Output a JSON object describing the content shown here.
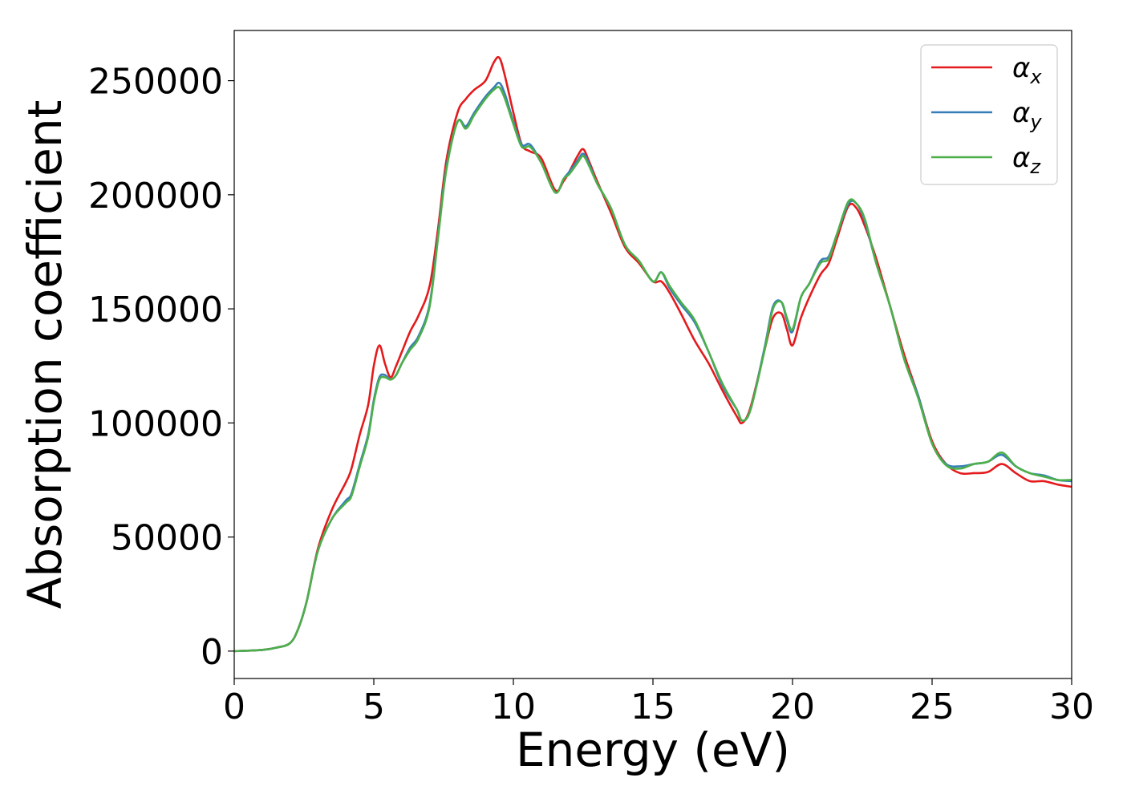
{
  "chart_data": {
    "type": "line",
    "xlabel": "Energy (eV)",
    "ylabel": "Absorption coefficient",
    "xlim": [
      0,
      30
    ],
    "ylim": [
      -12000,
      272000
    ],
    "xticks": [
      0,
      5,
      10,
      15,
      20,
      25,
      30
    ],
    "yticks": [
      0,
      50000,
      100000,
      150000,
      200000,
      250000
    ],
    "grid": false,
    "legend_position": "top-right",
    "series": [
      {
        "name": "α_x",
        "legend_main": "α",
        "legend_sub": "x",
        "color": "#e41a1c",
        "x": [
          0,
          1,
          1.5,
          2,
          2.3,
          2.6,
          3,
          3.5,
          4,
          4.2,
          4.5,
          4.8,
          5,
          5.2,
          5.4,
          5.6,
          5.8,
          6,
          6.3,
          6.6,
          7,
          7.3,
          7.6,
          8,
          8.3,
          8.6,
          9,
          9.3,
          9.5,
          9.7,
          10,
          10.3,
          10.6,
          11,
          11.5,
          11.8,
          12,
          12.3,
          12.5,
          12.7,
          13,
          13.5,
          14,
          14.5,
          15,
          15.3,
          15.6,
          16,
          16.5,
          17,
          17.5,
          18,
          18.2,
          18.5,
          19,
          19.3,
          19.6,
          19.8,
          20,
          20.3,
          20.6,
          21,
          21.3,
          21.6,
          22,
          22.3,
          22.6,
          23,
          23.5,
          24,
          24.5,
          25,
          25.5,
          26,
          26.5,
          27,
          27.5,
          28,
          28.5,
          29,
          29.5,
          30
        ],
        "y": [
          0,
          500,
          1500,
          3500,
          10000,
          22000,
          45000,
          62000,
          74000,
          80000,
          95000,
          108000,
          125000,
          134000,
          126000,
          120000,
          125000,
          131000,
          140000,
          147000,
          160000,
          185000,
          215000,
          236000,
          242000,
          246000,
          250000,
          258000,
          260000,
          252000,
          236000,
          222000,
          219000,
          216000,
          202000,
          206000,
          210000,
          217000,
          220000,
          215000,
          206000,
          192000,
          177000,
          170000,
          162000,
          162000,
          157000,
          148000,
          136000,
          126000,
          114000,
          103000,
          100000,
          107000,
          132000,
          146000,
          148000,
          141000,
          134000,
          146000,
          155000,
          165000,
          170000,
          181000,
          195000,
          194000,
          186000,
          172000,
          151000,
          130000,
          112000,
          92000,
          82000,
          78000,
          78000,
          78500,
          82000,
          78000,
          74500,
          74500,
          73000,
          72000
        ]
      },
      {
        "name": "α_y",
        "legend_main": "α",
        "legend_sub": "y",
        "color": "#377eb8",
        "x": [
          0,
          1,
          1.5,
          2,
          2.3,
          2.6,
          3,
          3.5,
          4,
          4.2,
          4.5,
          4.8,
          5,
          5.2,
          5.4,
          5.6,
          5.8,
          6,
          6.3,
          6.6,
          7,
          7.3,
          7.6,
          8,
          8.3,
          8.6,
          9,
          9.3,
          9.5,
          9.7,
          10,
          10.3,
          10.6,
          11,
          11.5,
          11.8,
          12,
          12.3,
          12.5,
          12.7,
          13,
          13.5,
          14,
          14.5,
          15,
          15.3,
          15.6,
          16,
          16.5,
          17,
          17.5,
          18,
          18.2,
          18.5,
          19,
          19.3,
          19.6,
          19.8,
          20,
          20.3,
          20.6,
          21,
          21.3,
          21.6,
          22,
          22.3,
          22.6,
          23,
          23.5,
          24,
          24.5,
          25,
          25.5,
          26,
          26.5,
          27,
          27.5,
          28,
          28.5,
          29,
          29.5,
          30
        ],
        "y": [
          0,
          500,
          1500,
          3500,
          10000,
          22000,
          44000,
          58000,
          66000,
          69000,
          82000,
          95000,
          110000,
          120000,
          121000,
          119000,
          121000,
          126000,
          133000,
          138000,
          152000,
          182000,
          212000,
          232000,
          230000,
          236000,
          243000,
          247000,
          249000,
          244000,
          232000,
          222000,
          222000,
          214000,
          201000,
          207000,
          210000,
          215000,
          218000,
          214000,
          205000,
          194000,
          178000,
          171000,
          162000,
          166000,
          159000,
          152000,
          144000,
          131000,
          116000,
          106000,
          101000,
          106000,
          133000,
          151000,
          153000,
          145000,
          140000,
          155000,
          161000,
          171000,
          173000,
          183000,
          196000,
          196000,
          188000,
          170000,
          151000,
          128000,
          112000,
          91000,
          82000,
          81000,
          82000,
          83000,
          86000,
          81000,
          78000,
          77000,
          75000,
          74500
        ]
      },
      {
        "name": "α_z",
        "legend_main": "α",
        "legend_sub": "z",
        "color": "#4daf4a",
        "x": [
          0,
          1,
          1.5,
          2,
          2.3,
          2.6,
          3,
          3.5,
          4,
          4.2,
          4.5,
          4.8,
          5,
          5.2,
          5.4,
          5.6,
          5.8,
          6,
          6.3,
          6.6,
          7,
          7.3,
          7.6,
          8,
          8.3,
          8.6,
          9,
          9.3,
          9.5,
          9.7,
          10,
          10.3,
          10.6,
          11,
          11.5,
          11.8,
          12,
          12.3,
          12.5,
          12.7,
          13,
          13.5,
          14,
          14.5,
          15,
          15.3,
          15.6,
          16,
          16.5,
          17,
          17.5,
          18,
          18.2,
          18.5,
          19,
          19.3,
          19.6,
          19.8,
          20,
          20.3,
          20.6,
          21,
          21.3,
          21.6,
          22,
          22.3,
          22.6,
          23,
          23.5,
          24,
          24.5,
          25,
          25.5,
          26,
          26.5,
          27,
          27.5,
          28,
          28.5,
          29,
          29.5,
          30
        ],
        "y": [
          0,
          500,
          1500,
          3500,
          10000,
          22000,
          44000,
          58000,
          65000,
          68000,
          81000,
          94000,
          109000,
          119000,
          120000,
          119000,
          121000,
          126000,
          132000,
          137000,
          151000,
          181000,
          211000,
          232000,
          229000,
          235000,
          242000,
          246000,
          247000,
          242000,
          231000,
          221000,
          221000,
          214000,
          201000,
          207000,
          209000,
          214000,
          217000,
          213000,
          205000,
          194000,
          178000,
          171000,
          162000,
          166000,
          160000,
          153000,
          145000,
          131000,
          117000,
          106000,
          101000,
          106000,
          132000,
          150000,
          153000,
          146000,
          141000,
          155000,
          161000,
          170000,
          172000,
          183000,
          197000,
          196000,
          189000,
          170000,
          151000,
          128000,
          111000,
          91000,
          81500,
          80000,
          82000,
          83000,
          87000,
          81000,
          78000,
          76500,
          75000,
          75000
        ]
      }
    ]
  }
}
